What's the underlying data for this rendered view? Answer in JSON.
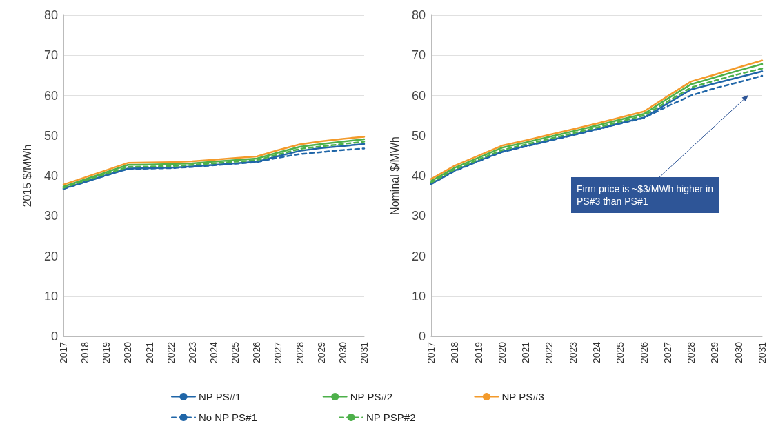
{
  "chart_data": [
    {
      "type": "line",
      "ylabel": "2015 $/MWh",
      "categories": [
        "2017",
        "2018",
        "2019",
        "2020",
        "2021",
        "2022",
        "2023",
        "2024",
        "2025",
        "2026",
        "2027",
        "2028",
        "2029",
        "2030",
        "2031"
      ],
      "ylim": [
        0,
        80
      ],
      "yticks": [
        0,
        10,
        20,
        30,
        40,
        50,
        60,
        70,
        80
      ],
      "grid": "y",
      "legend": "bottom",
      "marker": "none",
      "series": [
        {
          "name": "NP PS#1",
          "color": "#2066a8",
          "line_style": "solid",
          "values": [
            36.8,
            38.5,
            40.2,
            41.8,
            41.9,
            42.0,
            42.3,
            42.7,
            43.1,
            43.5,
            44.9,
            46.2,
            46.9,
            47.4,
            47.9
          ]
        },
        {
          "name": "NP PS#2",
          "color": "#4db04a",
          "line_style": "solid",
          "values": [
            37.3,
            39.1,
            40.9,
            42.7,
            42.8,
            42.9,
            43.1,
            43.5,
            43.9,
            44.3,
            45.8,
            47.2,
            47.9,
            48.5,
            49.1
          ]
        },
        {
          "name": "NP PS#3",
          "color": "#f39a2b",
          "line_style": "solid",
          "values": [
            37.8,
            39.6,
            41.4,
            43.2,
            43.3,
            43.4,
            43.6,
            44.0,
            44.4,
            44.8,
            46.4,
            47.8,
            48.6,
            49.2,
            49.7
          ]
        },
        {
          "name": "No NP PS#1",
          "color": "#2066a8",
          "line_style": "dashed",
          "values": [
            36.7,
            38.4,
            40.1,
            41.7,
            41.8,
            41.9,
            42.2,
            42.6,
            43.0,
            43.4,
            44.5,
            45.4,
            45.9,
            46.4,
            46.8
          ]
        },
        {
          "name": "NP PSP#2",
          "color": "#4db04a",
          "line_style": "dashed",
          "values": [
            37.0,
            38.8,
            40.5,
            42.2,
            42.3,
            42.4,
            42.7,
            43.1,
            43.5,
            43.9,
            45.3,
            46.7,
            47.3,
            47.9,
            48.5
          ]
        }
      ]
    },
    {
      "type": "line",
      "ylabel": "Nominal $/MWh",
      "categories": [
        "2017",
        "2018",
        "2019",
        "2020",
        "2021",
        "2022",
        "2023",
        "2024",
        "2025",
        "2026",
        "2027",
        "2028",
        "2029",
        "2030",
        "2031"
      ],
      "ylim": [
        0,
        80
      ],
      "yticks": [
        0,
        10,
        20,
        30,
        40,
        50,
        60,
        70,
        80
      ],
      "grid": "y",
      "marker": "none",
      "annotations": [
        "Firm price is ~$3/MWh higher in PS#3 than PS#1"
      ],
      "series": [
        {
          "color": "#2066a8",
          "line_style": "solid",
          "values": [
            38.0,
            41.3,
            43.7,
            46.0,
            47.4,
            48.8,
            50.2,
            51.6,
            53.1,
            54.5,
            58.0,
            61.5,
            63.0,
            64.5,
            66.0
          ]
        },
        {
          "color": "#4db04a",
          "line_style": "solid",
          "values": [
            38.7,
            42.0,
            44.5,
            47.0,
            48.3,
            49.7,
            51.1,
            52.5,
            54.0,
            55.4,
            59.2,
            62.8,
            64.5,
            66.2,
            67.8
          ]
        },
        {
          "color": "#f39a2b",
          "line_style": "solid",
          "values": [
            39.2,
            42.5,
            45.0,
            47.5,
            48.8,
            50.2,
            51.6,
            53.0,
            54.5,
            56.0,
            59.8,
            63.5,
            65.2,
            67.0,
            68.7
          ]
        },
        {
          "color": "#2066a8",
          "line_style": "dashed",
          "values": [
            37.9,
            41.2,
            43.6,
            45.9,
            47.3,
            48.7,
            50.1,
            51.5,
            53.0,
            54.4,
            57.3,
            60.0,
            61.8,
            63.3,
            64.9
          ]
        },
        {
          "color": "#4db04a",
          "line_style": "dashed",
          "values": [
            38.3,
            41.6,
            44.0,
            46.4,
            47.8,
            49.2,
            50.6,
            52.0,
            53.5,
            55.0,
            58.5,
            62.0,
            63.7,
            65.3,
            66.7
          ]
        }
      ]
    }
  ]
}
